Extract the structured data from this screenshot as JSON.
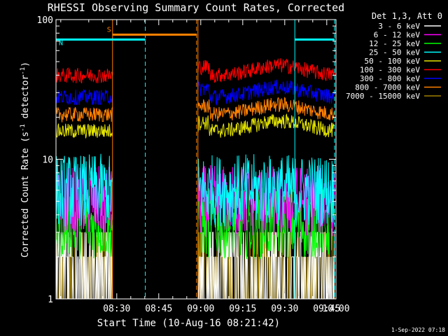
{
  "chart_data": {
    "type": "line",
    "title": "RHESSI Observing Summary Count Rates, Corrected",
    "xlabel": "Start Time (10-Aug-16 08:21:42)",
    "ylabel": "Corrected Count Rate (s^-1 detector^-1)",
    "ylabel_parts": {
      "base": "Corrected Count Rate (s",
      "sup1": "-1",
      "mid": " detector",
      "sup2": "-1",
      "end": ")"
    },
    "y_scale": "log",
    "ylim": [
      1,
      100
    ],
    "y_tick_labels": [
      "1",
      "10",
      "100"
    ],
    "xlim_minutes": [
      8.3,
      108.3
    ],
    "x_ticks": [
      {
        "label": "08:30",
        "min": 30
      },
      {
        "label": "08:45",
        "min": 45
      },
      {
        "label": "09:00",
        "min": 60
      },
      {
        "label": "09:15",
        "min": 75
      },
      {
        "label": "09:30",
        "min": 90
      },
      {
        "label": "09:45",
        "min": 105
      },
      {
        "label": "10:00",
        "min": 120
      }
    ],
    "legend_title": "Det 1,3, Att 0",
    "legend_placement": "right",
    "series": [
      {
        "name": "3 - 6 keV",
        "color": "#ffffff",
        "level": 1.6
      },
      {
        "name": "6 - 12 keV",
        "color": "#ff00ff",
        "level": 5.0
      },
      {
        "name": "12 - 25 keV",
        "color": "#00ff00",
        "level": 3.5
      },
      {
        "name": "25 - 50 keV",
        "color": "#00ffff",
        "level": 6.0
      },
      {
        "name": "50 - 100 keV",
        "color": "#e6e600",
        "level": 16
      },
      {
        "name": "100 - 300 keV",
        "color": "#ff0000",
        "level": 40
      },
      {
        "name": "300 - 800 keV",
        "color": "#0000ff",
        "level": 28
      },
      {
        "name": "800 - 7000 keV",
        "color": "#ff8000",
        "level": 21
      },
      {
        "name": "7000 - 15000 keV",
        "color": "#a08000",
        "level": 1.5
      }
    ],
    "data_segments_minutes": [
      [
        8.3,
        28.5
      ],
      [
        59.0,
        107.8
      ]
    ],
    "annotations": [
      {
        "text": "S",
        "color": "#ff8000",
        "x_start": 28.5,
        "x_end": 58.5,
        "y": 78
      },
      {
        "text": "N",
        "color": "#00ffff",
        "x_start": 8.3,
        "x_end": 40.2,
        "y": 72
      }
    ],
    "vlines": [
      {
        "x": 40.2,
        "color": "#00ffff",
        "style": "dashed"
      },
      {
        "x": 58.5,
        "color": "#ff8000",
        "style": "dashed"
      },
      {
        "x": 28.5,
        "color": "#ff8000",
        "style": "solid"
      },
      {
        "x": 59.0,
        "color": "#ff8000",
        "style": "solid"
      },
      {
        "x": 93.6,
        "color": "#00ffff",
        "style": "solid"
      },
      {
        "x": 107.8,
        "color": "#00ffff",
        "style": "dashed"
      }
    ],
    "hsegments": [
      {
        "x_start": 93.6,
        "x_end": 107.8,
        "y": 72,
        "color": "#00ffff"
      }
    ]
  },
  "footer": {
    "date": "1-Sep-2022 07:18"
  }
}
